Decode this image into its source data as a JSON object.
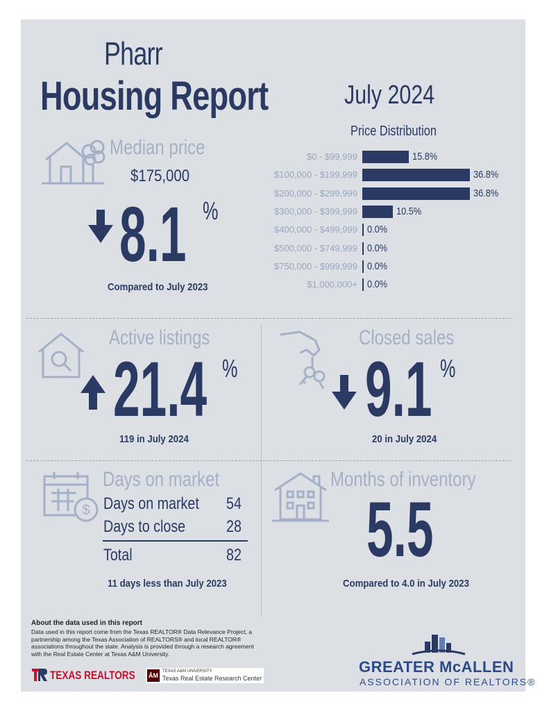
{
  "header": {
    "city": "Pharr",
    "report": "Housing Report",
    "month": "July 2024"
  },
  "median_price": {
    "label": "Median price",
    "value": "$175,000",
    "change": "8.1",
    "pct": "%",
    "direction": "down",
    "note": "Compared to July 2023"
  },
  "price_distribution": {
    "title": "Price Distribution",
    "chart_data": {
      "type": "bar",
      "orientation": "horizontal",
      "title": "Price Distribution",
      "categories": [
        "$0 - $99,999",
        "$100,000 - $199,999",
        "$200,000 - $299,999",
        "$300,000 - $399,999",
        "$400,000 - $499,999",
        "$500,000 - $749,999",
        "$750,000 - $999,999",
        "$1,000,000+"
      ],
      "values": [
        15.8,
        36.8,
        36.8,
        10.5,
        0.0,
        0.0,
        0.0,
        0.0
      ],
      "labels": [
        "15.8%",
        "36.8%",
        "36.8%",
        "10.5%",
        "0.0%",
        "0.0%",
        "0.0%",
        "0.0%"
      ],
      "xlim": [
        0,
        36.8
      ]
    }
  },
  "active_listings": {
    "label": "Active listings",
    "change": "21.4",
    "pct": "%",
    "direction": "up",
    "note": "119 in July 2024"
  },
  "closed_sales": {
    "label": "Closed sales",
    "change": "9.1",
    "pct": "%",
    "direction": "down",
    "note": "20 in July 2024"
  },
  "days_on_market": {
    "label": "Days on market",
    "rows": [
      {
        "name": "Days on market",
        "value": "54"
      },
      {
        "name": "Days to close",
        "value": "28"
      }
    ],
    "total_label": "Total",
    "total_value": "82",
    "note": "11 days less than July 2023"
  },
  "months_inventory": {
    "label": "Months of inventory",
    "value": "5.5",
    "note": "Compared to 4.0 in July 2023"
  },
  "footer": {
    "heading": "About the data used in this report",
    "body": "Data used in this report come from the Texas REALTOR® Data Relevance Project, a partnership among the Texas Association of REALTORS® and local REALTOR® associations throughout the state. Analysis is provided through a research agreement with the Real Estate Center at Texas A&M University.",
    "texas_realtors": "TEXAS REALTORS",
    "tamu_small": "TEXAS A&M UNIVERSITY",
    "tamu_center": "Texas Real Estate Research Center",
    "tamu_mark": "ĀM",
    "gm_line1": "GREATER McALLEN",
    "gm_line2": "ASSOCIATION OF REALTORS®"
  },
  "colors": {
    "navy": "#2b3a62",
    "slate": "#a4b0c5",
    "background": "#dce0e5"
  },
  "icons": [
    "house-tree-icon",
    "house-magnifier-icon",
    "hand-keys-icon",
    "calendar-dollar-icon",
    "building-icon"
  ]
}
